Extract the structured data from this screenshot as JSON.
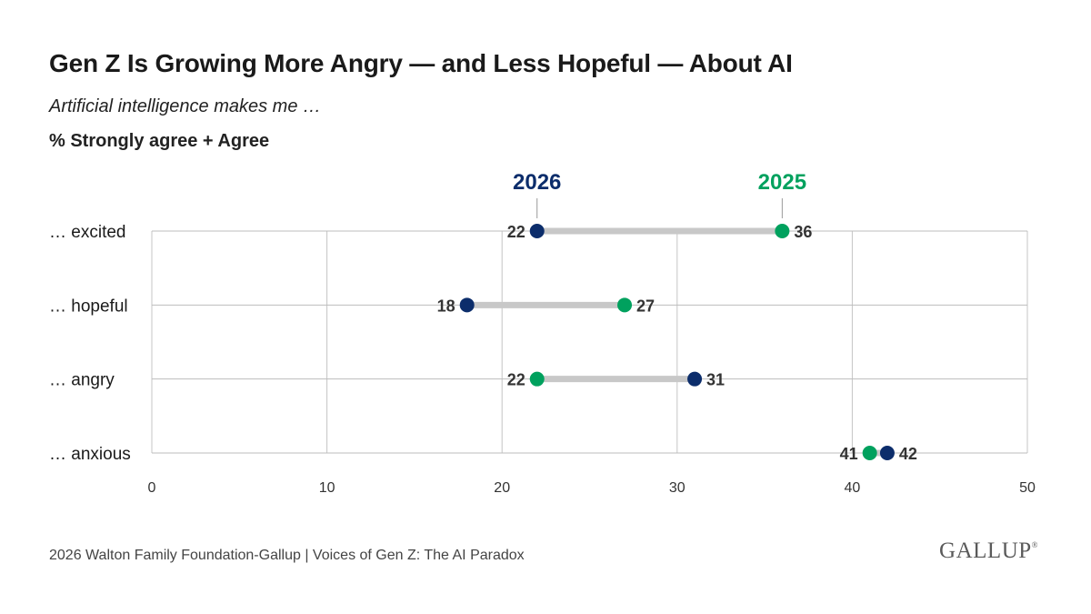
{
  "header": {
    "title": "Gen Z Is Growing More Angry — and Less Hopeful — About AI",
    "subtitle": "Artificial intelligence makes me …",
    "measure": "% Strongly agree + Agree"
  },
  "chart_data": {
    "type": "dumbbell",
    "categories": [
      "… excited",
      "… hopeful",
      "… angry",
      "… anxious"
    ],
    "series": [
      {
        "name": "2026",
        "color": "#0c2d6b",
        "values": [
          22,
          18,
          31,
          42
        ]
      },
      {
        "name": "2025",
        "color": "#00a15e",
        "values": [
          36,
          27,
          22,
          41
        ]
      }
    ],
    "xlim": [
      0,
      50
    ],
    "xticks": [
      0,
      10,
      20,
      30,
      40,
      50
    ],
    "grid": true,
    "legend": "top-labels",
    "connector_color": "#c8c8c8"
  },
  "footer": {
    "source": "2026 Walton Family Foundation-Gallup | Voices of Gen Z: The AI Paradox",
    "logo_text": "GALLUP",
    "logo_mark": "®"
  }
}
